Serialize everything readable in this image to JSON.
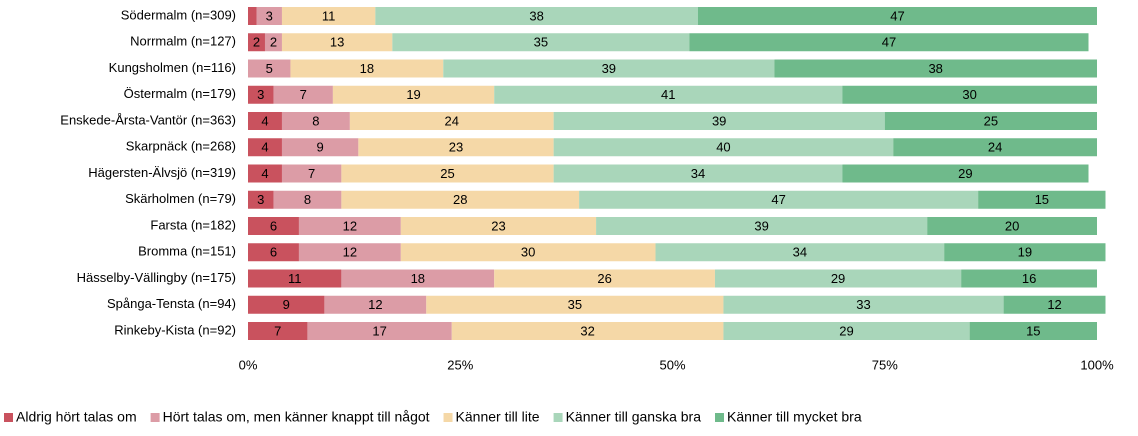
{
  "chart_data": {
    "type": "stacked_barh",
    "categories": [
      "Södermalm (n=309)",
      "Norrmalm (n=127)",
      "Kungsholmen (n=116)",
      "Östermalm (n=179)",
      "Enskede-Årsta-Vantör (n=363)",
      "Skarpnäck (n=268)",
      "Hägersten-Älvsjö (n=319)",
      "Skärholmen (n=79)",
      "Farsta (n=182)",
      "Bromma (n=151)",
      "Hässelby-Vällingby (n=175)",
      "Spånga-Tensta (n=94)",
      "Rinkeby-Kista (n=92)"
    ],
    "series": [
      {
        "name": "Aldrig hört talas om",
        "color": "#c9525e",
        "values": [
          1,
          2,
          0,
          3,
          4,
          4,
          4,
          3,
          6,
          6,
          11,
          9,
          7
        ]
      },
      {
        "name": "Hört talas om, men känner knappt till något",
        "color": "#dc9ca6",
        "values": [
          3,
          2,
          5,
          7,
          8,
          9,
          7,
          8,
          12,
          12,
          18,
          12,
          17
        ]
      },
      {
        "name": "Känner till lite",
        "color": "#f5d8a7",
        "values": [
          11,
          13,
          18,
          19,
          24,
          23,
          25,
          28,
          23,
          30,
          26,
          35,
          32
        ]
      },
      {
        "name": "Känner till ganska bra",
        "color": "#a9d6ba",
        "values": [
          38,
          35,
          39,
          41,
          39,
          40,
          34,
          47,
          39,
          34,
          29,
          33,
          29
        ]
      },
      {
        "name": "Känner till mycket bra",
        "color": "#6fba8b",
        "values": [
          47,
          47,
          38,
          30,
          25,
          24,
          29,
          15,
          20,
          19,
          16,
          12,
          15
        ]
      }
    ],
    "xlim": [
      0,
      100
    ],
    "xticks": [
      {
        "value": 0,
        "label": "0%"
      },
      {
        "value": 25,
        "label": "25%"
      },
      {
        "value": 50,
        "label": "50%"
      },
      {
        "value": 75,
        "label": "75%"
      },
      {
        "value": 100,
        "label": "100%"
      }
    ],
    "legend": "bottom"
  }
}
